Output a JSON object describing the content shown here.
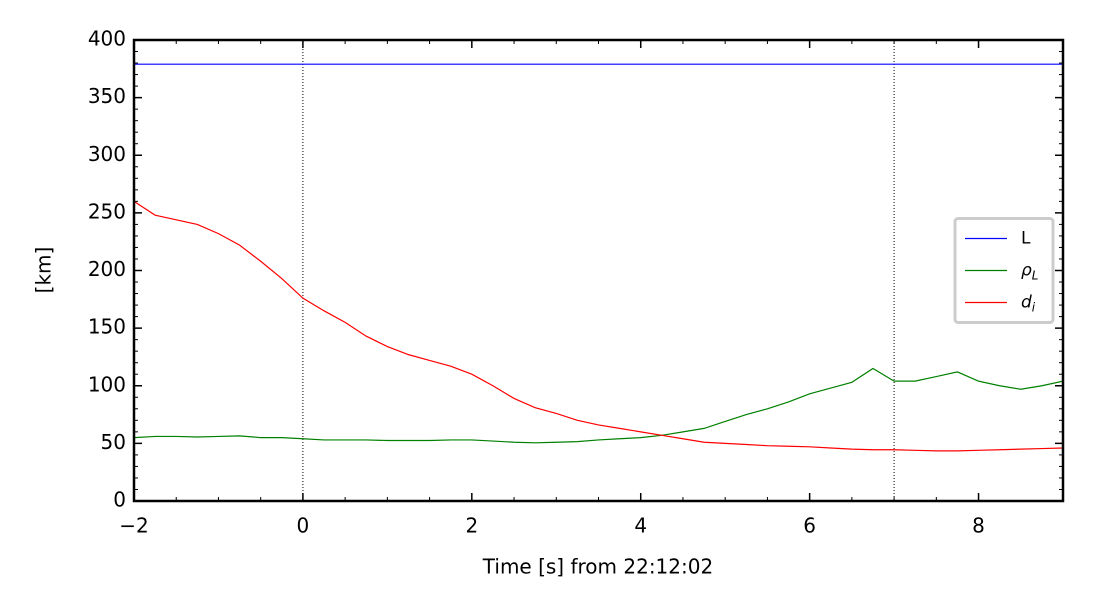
{
  "chart_data": {
    "type": "line",
    "xlabel": "Time [s] from 22:12:02",
    "ylabel": "[km]",
    "x": [
      -2,
      -1.75,
      -1.5,
      -1.25,
      -1,
      -0.75,
      -0.5,
      -0.25,
      0,
      0.25,
      0.5,
      0.75,
      1,
      1.25,
      1.5,
      1.75,
      2,
      2.25,
      2.5,
      2.75,
      3,
      3.25,
      3.5,
      3.75,
      4,
      4.25,
      4.5,
      4.75,
      5,
      5.25,
      5.5,
      5.75,
      6,
      6.25,
      6.5,
      6.75,
      7,
      7.25,
      7.5,
      7.75,
      8,
      8.25,
      8.5,
      8.75,
      9
    ],
    "series": [
      {
        "name": "L",
        "color": "#0000ff",
        "values": [
          379,
          379,
          379,
          379,
          379,
          379,
          379,
          379,
          379,
          379,
          379,
          379,
          379,
          379,
          379,
          379,
          379,
          379,
          379,
          379,
          379,
          379,
          379,
          379,
          379,
          379,
          379,
          379,
          379,
          379,
          379,
          379,
          379,
          379,
          379,
          379,
          379,
          379,
          379,
          379,
          379,
          379,
          379,
          379,
          379
        ]
      },
      {
        "name": "ρL",
        "color": "#008000",
        "values": [
          55,
          56,
          56,
          55.5,
          56,
          56.5,
          55,
          55,
          54,
          53,
          53,
          53,
          52.5,
          52.5,
          52.5,
          53,
          53,
          52,
          51,
          50.5,
          51,
          51.5,
          53,
          54,
          55,
          57,
          60,
          63,
          69,
          75,
          80,
          86,
          93,
          98,
          103,
          115,
          104,
          104,
          108,
          112,
          104,
          100,
          97,
          100,
          104
        ]
      },
      {
        "name": "di",
        "color": "#ff0000",
        "values": [
          260,
          248,
          244,
          240,
          232,
          222,
          208,
          193,
          176,
          165,
          155,
          143,
          134,
          127,
          122,
          117,
          110,
          100,
          89,
          81,
          76,
          70,
          66,
          63,
          60,
          57,
          54,
          51,
          50,
          49,
          48,
          47.5,
          47,
          46,
          45,
          44.5,
          44.5,
          44,
          43.5,
          43.5,
          44,
          44.5,
          45,
          45.5,
          46
        ]
      }
    ],
    "vlines": [
      0,
      7
    ],
    "xlim": [
      -2,
      9
    ],
    "xticks": [
      {
        "value": -2,
        "label": "−2"
      },
      0,
      2,
      4,
      6,
      8
    ],
    "ylim": [
      0,
      400
    ],
    "yticks": [
      0,
      50,
      100,
      150,
      200,
      250,
      300,
      350,
      400
    ],
    "legend": "center right"
  }
}
